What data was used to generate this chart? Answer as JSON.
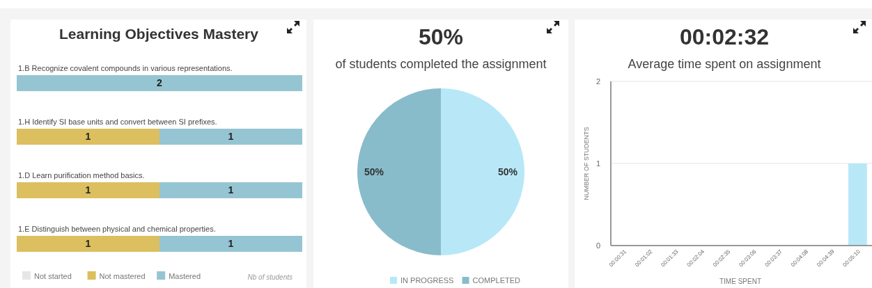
{
  "chart_data": [
    {
      "type": "bar",
      "orientation": "horizontal",
      "stacked": true,
      "title": "Learning Objectives Mastery",
      "categories": [
        "1.B Recognize covalent compounds in various representations.",
        "1.H Identify SI base units and convert between SI prefixes.",
        "1.D Learn purification method basics.",
        "1.E Distinguish between physical and chemical properties."
      ],
      "series": [
        {
          "name": "Not started",
          "color": "#e6e6e6",
          "values": [
            0,
            0,
            0,
            0
          ],
          "value_labels": [
            null,
            null,
            null,
            null
          ]
        },
        {
          "name": "Not mastered",
          "color": "#dcbf5f",
          "values": [
            0,
            1,
            1,
            1
          ],
          "value_labels": [
            null,
            "1",
            "1",
            "1"
          ]
        },
        {
          "name": "Mastered",
          "color": "#95c5d3",
          "values": [
            2,
            1,
            1,
            1
          ],
          "value_labels": [
            "2",
            "1",
            "1",
            "1"
          ]
        }
      ],
      "legend": "bottom",
      "annotations": [
        "Nb of students"
      ]
    },
    {
      "type": "pie",
      "title": "50%",
      "subtitle": "of students completed the assignment",
      "categories": [
        "IN PROGRESS",
        "COMPLETED"
      ],
      "values": [
        50,
        50
      ],
      "colors": [
        "#b8e8f8",
        "#88bccb"
      ],
      "value_labels": [
        "50%",
        "50%"
      ],
      "legend": "bottom"
    },
    {
      "type": "bar",
      "title": "00:02:32",
      "subtitle": "Average time spent on assignment",
      "xlabel": "TIME SPENT",
      "ylabel": "NUMBER OF STUDENTS",
      "categories": [
        "00:00:31",
        "00:01:02",
        "00:01:33",
        "00:02:04",
        "00:02:35",
        "00:03:06",
        "00:03:37",
        "00:04:08",
        "00:04:39",
        "00:05:10"
      ],
      "values": [
        0,
        0,
        0,
        0,
        0,
        0,
        0,
        0,
        0,
        1
      ],
      "color": "#b8e8f8",
      "ylim": [
        0,
        2
      ],
      "yticks": [
        0,
        1,
        2
      ],
      "grid": "y"
    }
  ]
}
